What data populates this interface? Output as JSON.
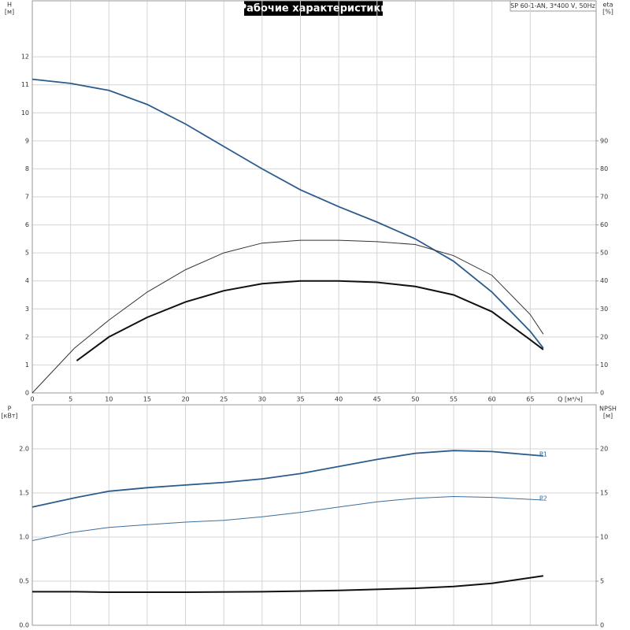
{
  "chart_data": [
    {
      "type": "line",
      "title": "Рабочие характеристики",
      "annotation": "SP 60-1-AN, 3*400 V, 50Hz",
      "ylabel": "H",
      "yunit": "[м]",
      "y2label": "eta",
      "y2unit": "[%]",
      "xlabel": "Q [м³/ч]",
      "xlim": [
        0,
        73.6
      ],
      "xticks": [
        0,
        5,
        10,
        15,
        20,
        25,
        30,
        35,
        40,
        45,
        50,
        55,
        60,
        65
      ],
      "ylim": [
        0,
        14
      ],
      "yticks": [
        0,
        1,
        2,
        3,
        4,
        5,
        6,
        7,
        8,
        9,
        10,
        11,
        12
      ],
      "y2lim": [
        0,
        140
      ],
      "y2ticks": [
        0,
        10,
        20,
        30,
        40,
        50,
        60,
        70,
        80,
        90
      ],
      "grid": true,
      "series": [
        {
          "color": "#2b5c8c",
          "width": 1.8,
          "x": [
            0,
            5,
            10,
            15,
            20,
            25,
            30,
            35,
            40,
            45,
            50,
            55,
            60,
            65,
            66.7
          ],
          "values": [
            11.2,
            11.05,
            10.8,
            10.3,
            9.6,
            8.8,
            8.0,
            7.25,
            6.65,
            6.1,
            5.5,
            4.7,
            3.6,
            2.2,
            1.6
          ]
        },
        {
          "color": "#333333",
          "width": 1,
          "axis": "y2",
          "x": [
            0,
            5.5,
            10,
            15,
            20,
            25,
            30,
            35,
            40,
            45,
            50,
            55,
            60,
            65,
            66.7
          ],
          "values": [
            0,
            16,
            26,
            36,
            44,
            50,
            53.5,
            54.5,
            54.5,
            54,
            53,
            49,
            42,
            28,
            21
          ]
        },
        {
          "color": "#111111",
          "width": 2,
          "axis": "y2",
          "x": [
            5.8,
            10,
            15,
            20,
            25,
            30,
            35,
            40,
            45,
            50,
            55,
            60,
            65,
            66.7
          ],
          "values": [
            11.5,
            20,
            27,
            32.5,
            36.5,
            39,
            40,
            40,
            39.5,
            38,
            35,
            29,
            19,
            15.5
          ]
        }
      ]
    },
    {
      "type": "line",
      "ylabel": "P",
      "yunit": "[кВт]",
      "y2label": "NPSH",
      "y2unit": "[м]",
      "xlim": [
        0,
        73.6
      ],
      "ylim": [
        0,
        2.5
      ],
      "yticks": [
        {
          "value": 0,
          "label": "0.0"
        },
        {
          "value": 0.5,
          "label": "0.5"
        },
        {
          "value": 1,
          "label": "1.0"
        },
        {
          "value": 1.5,
          "label": "1.5"
        },
        {
          "value": 2,
          "label": "2.0"
        }
      ],
      "y2lim": [
        0,
        25
      ],
      "y2ticks": [
        0,
        5,
        10,
        15,
        20
      ],
      "grid": true,
      "series": [
        {
          "name": "P1",
          "color": "#2b5c8c",
          "width": 1.8,
          "x": [
            0,
            5.8,
            10,
            15,
            20,
            25,
            30,
            35,
            40,
            45,
            50,
            55,
            60,
            66.7
          ],
          "values": [
            1.34,
            1.45,
            1.52,
            1.56,
            1.59,
            1.62,
            1.66,
            1.72,
            1.8,
            1.88,
            1.95,
            1.98,
            1.97,
            1.92
          ]
        },
        {
          "name": "P2",
          "color": "#3d6e9a",
          "width": 1,
          "x": [
            0,
            5,
            10,
            15,
            20,
            25,
            30,
            35,
            40,
            45,
            50,
            55,
            60,
            66.7
          ],
          "values": [
            0.96,
            1.05,
            1.11,
            1.14,
            1.17,
            1.19,
            1.23,
            1.28,
            1.34,
            1.4,
            1.44,
            1.46,
            1.45,
            1.42
          ]
        },
        {
          "color": "#111111",
          "width": 2,
          "axis": "y2",
          "x": [
            0,
            5.8,
            10,
            20,
            30,
            40,
            50,
            55,
            60,
            66.7
          ],
          "values": [
            3.8,
            3.8,
            3.75,
            3.75,
            3.8,
            3.95,
            4.2,
            4.4,
            4.75,
            5.6
          ]
        }
      ]
    }
  ]
}
